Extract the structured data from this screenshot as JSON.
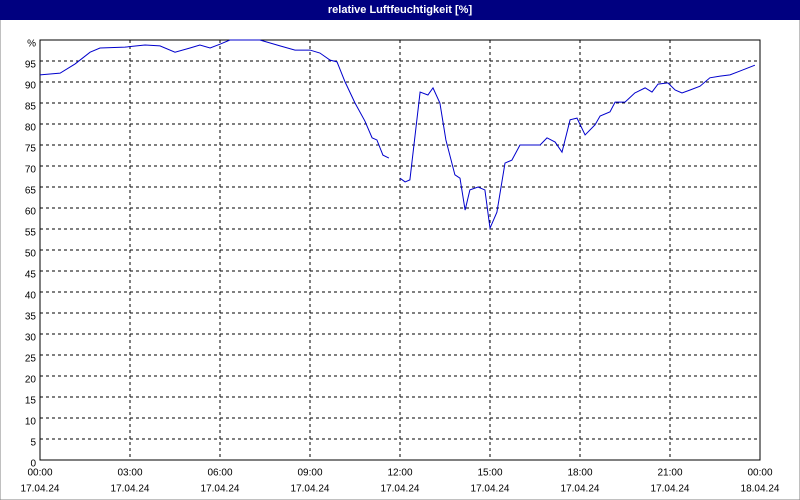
{
  "chart_data": {
    "type": "line",
    "title": "relative Luftfeuchtigkeit [%]",
    "x": [
      0,
      0.67,
      1.17,
      1.67,
      2,
      2.83,
      3.5,
      4,
      4.5,
      5,
      5.33,
      5.67,
      6,
      6.33,
      7.33,
      8,
      8.5,
      9,
      9.33,
      9.67,
      9.9,
      10.17,
      10.5,
      10.83,
      11.07,
      11.23,
      11.43,
      11.63,
      11.8,
      12,
      12.17,
      12.33,
      12.67,
      12.93,
      13.1,
      13.33,
      13.53,
      13.83,
      14,
      14.17,
      14.33,
      14.6,
      14.83,
      15,
      15.23,
      15.5,
      15.73,
      16,
      16.33,
      16.67,
      16.9,
      17.17,
      17.4,
      17.67,
      17.9,
      18.17,
      18.5,
      18.67,
      19,
      19.17,
      19.5,
      19.83,
      20.17,
      20.4,
      20.6,
      20.93,
      21.17,
      21.4,
      21.67,
      22,
      22.33,
      22.67,
      23,
      23.33,
      23.83
    ],
    "values": [
      91.7,
      92.1,
      94.3,
      97.1,
      98.1,
      98.3,
      98.8,
      98.6,
      97.1,
      98.1,
      98.8,
      98.1,
      99,
      100,
      100,
      98.6,
      97.6,
      97.6,
      96.9,
      95.2,
      94.8,
      90,
      85,
      80.7,
      76.7,
      76.2,
      72.6,
      71.9,
      null,
      67.1,
      66.2,
      66.7,
      87.6,
      86.9,
      88.6,
      85,
      76.2,
      67.9,
      67.1,
      59.5,
      64.3,
      65,
      64.3,
      55.2,
      59,
      70.7,
      71.4,
      75,
      75,
      75,
      76.7,
      75.7,
      73.3,
      81,
      81.4,
      77.4,
      79.8,
      81.9,
      82.9,
      85.2,
      85.2,
      87.4,
      88.6,
      87.6,
      89.5,
      89.8,
      88.1,
      87.4,
      88.1,
      89,
      91,
      91.4,
      91.7,
      92.6,
      94
    ],
    "color": "#0000cc",
    "xlim": [
      0,
      24
    ],
    "xticks": [
      {
        "value": 0,
        "label": "00:00"
      },
      {
        "value": 3,
        "label": "03:00"
      },
      {
        "value": 6,
        "label": "06:00"
      },
      {
        "value": 9,
        "label": "09:00"
      },
      {
        "value": 12,
        "label": "12:00"
      },
      {
        "value": 15,
        "label": "15:00"
      },
      {
        "value": 18,
        "label": "18:00"
      },
      {
        "value": 21,
        "label": "21:00"
      },
      {
        "value": 24,
        "label": "00:00"
      }
    ],
    "xtick_dates": [
      "17.04.24",
      "17.04.24",
      "17.04.24",
      "17.04.24",
      "17.04.24",
      "17.04.24",
      "17.04.24",
      "17.04.24",
      "18.04.24"
    ],
    "ylim": [
      0,
      100
    ],
    "yticks": [
      0,
      5,
      10,
      15,
      20,
      25,
      30,
      35,
      40,
      45,
      50,
      55,
      60,
      65,
      70,
      75,
      80,
      85,
      90,
      95,
      {
        "value": 100,
        "label": "%"
      }
    ],
    "grid": true
  }
}
